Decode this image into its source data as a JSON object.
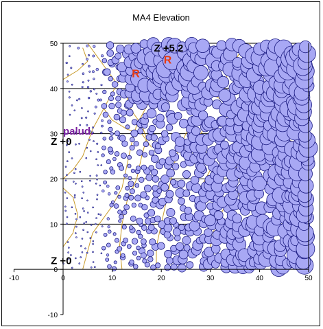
{
  "chart_data": {
    "type": "scatter",
    "title": "MA4 Elevation",
    "xlabel": "",
    "ylabel": "",
    "xlim": [
      -10,
      50
    ],
    "ylim": [
      -10,
      50
    ],
    "x_ticks": [
      -10,
      0,
      10,
      20,
      30,
      40,
      50
    ],
    "y_ticks": [
      -10,
      0,
      10,
      20,
      30,
      40,
      50
    ],
    "grid": "horizontal",
    "legend": "none",
    "point_color": "#a8a8f4",
    "point_stroke": "#1a1a80",
    "contour_color": "#c89a2a",
    "bubble_size_range": [
      0.3,
      2.2
    ],
    "annotations": [
      {
        "text": "Z +5.2",
        "x": 18.5,
        "y": 48.2,
        "color": "#000000"
      },
      {
        "text": "R",
        "x": 14.0,
        "y": 42.5,
        "color": "#e83a10"
      },
      {
        "text": "R",
        "x": 20.5,
        "y": 45.5,
        "color": "#e83a10"
      },
      {
        "text": "palud.",
        "x": 0.0,
        "y": 29.8,
        "color": "#7a1fa0"
      },
      {
        "text": "Z +0",
        "x": -2.5,
        "y": 27.5,
        "color": "#000000"
      },
      {
        "text": "Z +0",
        "x": -2.5,
        "y": 1.2,
        "color": "#000000"
      }
    ],
    "points_note_source": "bubble sizes estimated from image"
  }
}
